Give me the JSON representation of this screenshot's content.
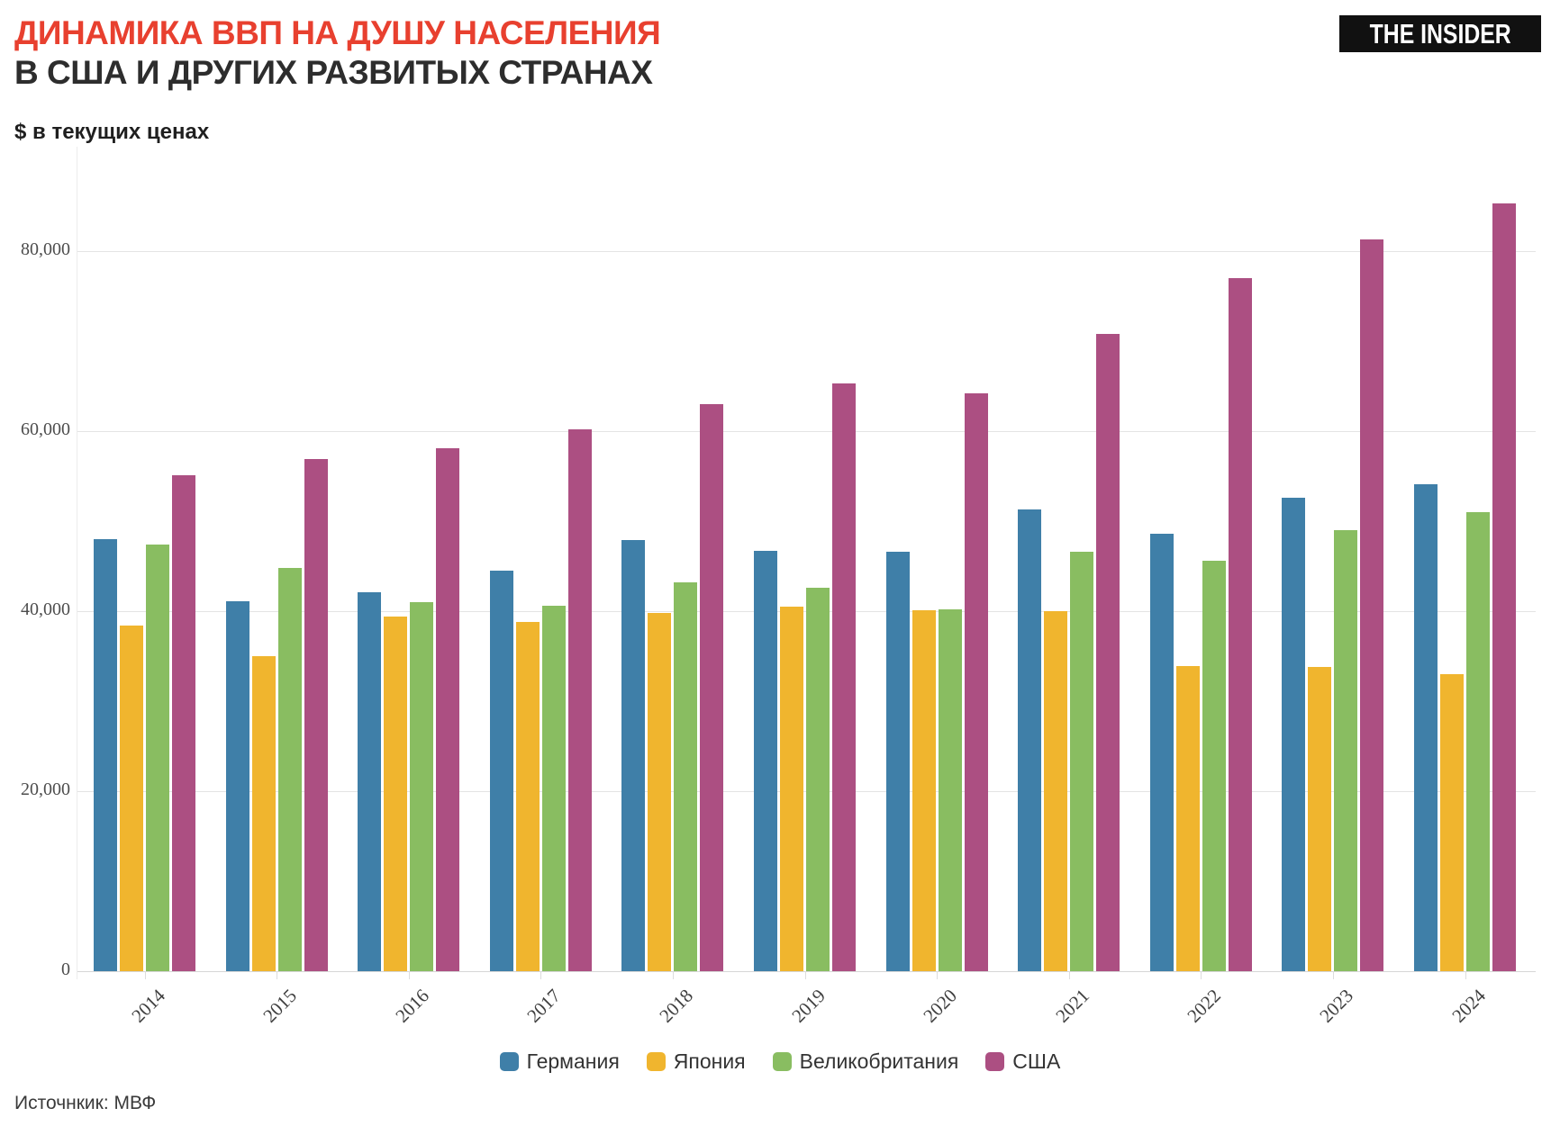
{
  "header": {
    "title_line1": "ДИНАМИКА ВВП НА ДУШУ НАСЕЛЕНИЯ",
    "title_line2": "В США И ДРУГИХ РАЗВИТЫХ СТРАНАХ",
    "units_label": "$ в текущих ценах",
    "logo_text": "THE INSIDER"
  },
  "footer": {
    "source": "Источнкик: МВФ"
  },
  "colors": {
    "title_accent": "#e8402f",
    "title_dark": "#2d2d2d",
    "germany": "#3f7fa8",
    "japan": "#f0b52e",
    "uk": "#89bd61",
    "usa": "#ac4f82"
  },
  "chart_data": {
    "type": "bar",
    "title": "ДИНАМИКА ВВП НА ДУШУ НАСЕЛЕНИЯ В США И ДРУГИХ РАЗВИТЫХ СТРАНАХ",
    "ylabel": "$ в текущих ценах",
    "source": "Источнкик: МВФ",
    "categories": [
      "2014",
      "2015",
      "2016",
      "2017",
      "2018",
      "2019",
      "2020",
      "2021",
      "2022",
      "2023",
      "2024"
    ],
    "series": [
      {
        "name": "Германия",
        "color": "#3f7fa8",
        "values": [
          48000,
          41150,
          42100,
          44550,
          47950,
          46750,
          46650,
          51350,
          48650,
          52650,
          54150
        ]
      },
      {
        "name": "Япония",
        "color": "#f0b52e",
        "values": [
          38450,
          35000,
          39400,
          38850,
          39800,
          40500,
          40150,
          40050,
          33950,
          33800,
          33050
        ]
      },
      {
        "name": "Великобритания",
        "color": "#89bd61",
        "values": [
          47400,
          44850,
          41050,
          40600,
          43250,
          42650,
          40250,
          46650,
          45650,
          49050,
          51050
        ]
      },
      {
        "name": "США",
        "color": "#ac4f82",
        "values": [
          55150,
          56900,
          58100,
          60200,
          63000,
          65300,
          64200,
          70800,
          77000,
          81300,
          85300
        ]
      }
    ],
    "ylim": [
      0,
      91600
    ],
    "yticks": [
      0,
      20000,
      40000,
      60000,
      80000
    ],
    "ytick_labels": [
      "0",
      "20,000",
      "40,000",
      "60,000",
      "80,000"
    ],
    "grid": true,
    "legend_position": "bottom"
  }
}
